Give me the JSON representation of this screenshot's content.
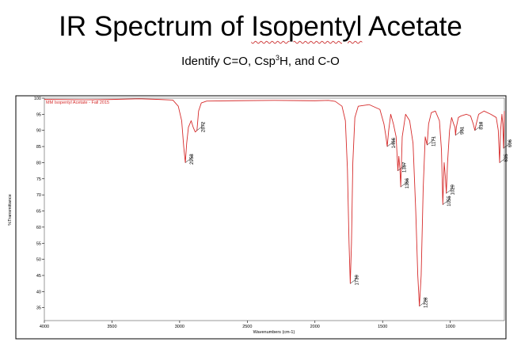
{
  "slide": {
    "title_part1": "IR Spectrum of ",
    "title_part2": "Isopentyl",
    "title_part3": " Acetate",
    "subtitle_part1": "Identify C=O, Csp",
    "subtitle_sup": "3",
    "subtitle_part2": "H, and C-O"
  },
  "chart_data": {
    "type": "line",
    "legend": "MM Isopentyl Acetate - Fall 2015",
    "xlabel": "Wavenumbers (cm-1)",
    "ylabel": "%Transmittance",
    "xlim": [
      4000,
      600
    ],
    "ylim": [
      31,
      100
    ],
    "x_ticks": [
      {
        "value": 4000,
        "label": "4000"
      },
      {
        "value": 3500,
        "label": "3500"
      },
      {
        "value": 3000,
        "label": "3000"
      },
      {
        "value": 2500,
        "label": "2500"
      },
      {
        "value": 2000,
        "label": "2000"
      },
      {
        "value": 1500,
        "label": "1500"
      },
      {
        "value": 1000,
        "label": "1000"
      }
    ],
    "y_ticks": [
      {
        "value": 100,
        "label": "100"
      },
      {
        "value": 95,
        "label": "95"
      },
      {
        "value": 90,
        "label": "90"
      },
      {
        "value": 85,
        "label": "85"
      },
      {
        "value": 80,
        "label": "80"
      },
      {
        "value": 75,
        "label": "75"
      },
      {
        "value": 70,
        "label": "70"
      },
      {
        "value": 65,
        "label": "65"
      },
      {
        "value": 60,
        "label": "60"
      },
      {
        "value": 55,
        "label": "55"
      },
      {
        "value": 50,
        "label": "50"
      },
      {
        "value": 45,
        "label": "45"
      },
      {
        "value": 40,
        "label": "40"
      },
      {
        "value": 35,
        "label": "35"
      }
    ],
    "series": [
      {
        "color": "#d62b2b",
        "points": [
          [
            4000,
            99.6
          ],
          [
            3700,
            99.5
          ],
          [
            3500,
            99.6
          ],
          [
            3300,
            99.8
          ],
          [
            3150,
            99.6
          ],
          [
            3050,
            99.4
          ],
          [
            3010,
            97.5
          ],
          [
            2985,
            93
          ],
          [
            2970,
            85
          ],
          [
            2958,
            80
          ],
          [
            2948,
            86
          ],
          [
            2935,
            91
          ],
          [
            2915,
            93
          ],
          [
            2900,
            91
          ],
          [
            2885,
            89.5
          ],
          [
            2872,
            90
          ],
          [
            2860,
            96
          ],
          [
            2840,
            98.5
          ],
          [
            2800,
            99.1
          ],
          [
            2600,
            99.2
          ],
          [
            2300,
            99.3
          ],
          [
            2000,
            99.2
          ],
          [
            1900,
            99.3
          ],
          [
            1850,
            99
          ],
          [
            1800,
            97.5
          ],
          [
            1775,
            93
          ],
          [
            1760,
            78
          ],
          [
            1748,
            55
          ],
          [
            1739,
            42.5
          ],
          [
            1730,
            55
          ],
          [
            1720,
            80
          ],
          [
            1705,
            94
          ],
          [
            1680,
            97.5
          ],
          [
            1600,
            98
          ],
          [
            1520,
            96.5
          ],
          [
            1490,
            92
          ],
          [
            1475,
            88
          ],
          [
            1466,
            85
          ],
          [
            1455,
            90
          ],
          [
            1440,
            95
          ],
          [
            1420,
            92
          ],
          [
            1400,
            88
          ],
          [
            1387,
            77.5
          ],
          [
            1380,
            82
          ],
          [
            1372,
            78
          ],
          [
            1366,
            72.5
          ],
          [
            1355,
            88
          ],
          [
            1330,
            95
          ],
          [
            1300,
            93
          ],
          [
            1275,
            86
          ],
          [
            1255,
            65
          ],
          [
            1240,
            45
          ],
          [
            1228,
            35.5
          ],
          [
            1215,
            45
          ],
          [
            1200,
            72
          ],
          [
            1185,
            88
          ],
          [
            1171,
            85.5
          ],
          [
            1160,
            92
          ],
          [
            1140,
            95.5
          ],
          [
            1110,
            96
          ],
          [
            1080,
            93
          ],
          [
            1065,
            84
          ],
          [
            1055,
            67
          ],
          [
            1045,
            80
          ],
          [
            1035,
            75
          ],
          [
            1029,
            70.5
          ],
          [
            1020,
            80
          ],
          [
            1005,
            90
          ],
          [
            990,
            94
          ],
          [
            975,
            92
          ],
          [
            965,
            91
          ],
          [
            961,
            88.5
          ],
          [
            955,
            91
          ],
          [
            940,
            94
          ],
          [
            920,
            94.5
          ],
          [
            880,
            95
          ],
          [
            850,
            94.5
          ],
          [
            830,
            92
          ],
          [
            818,
            90
          ],
          [
            808,
            92
          ],
          [
            790,
            95
          ],
          [
            750,
            96
          ],
          [
            700,
            95
          ],
          [
            660,
            94
          ],
          [
            645,
            90
          ],
          [
            635,
            80
          ],
          [
            628,
            90
          ],
          [
            618,
            95
          ],
          [
            612,
            92
          ],
          [
            606,
            84.5
          ],
          [
            600,
            96
          ]
        ]
      }
    ],
    "annotations": [
      {
        "x": 2958,
        "label": "2958"
      },
      {
        "x": 2872,
        "label": "2872"
      },
      {
        "x": 1739,
        "label": "1739"
      },
      {
        "x": 1466,
        "label": "1466"
      },
      {
        "x": 1387,
        "label": "1387"
      },
      {
        "x": 1366,
        "label": "1366"
      },
      {
        "x": 1228,
        "label": "1228"
      },
      {
        "x": 1171,
        "label": "1171"
      },
      {
        "x": 1055,
        "label": "1055"
      },
      {
        "x": 1029,
        "label": "1029"
      },
      {
        "x": 961,
        "label": "961"
      },
      {
        "x": 818,
        "label": "818"
      },
      {
        "x": 635,
        "label": "635"
      },
      {
        "x": 606,
        "label": "606"
      }
    ]
  }
}
